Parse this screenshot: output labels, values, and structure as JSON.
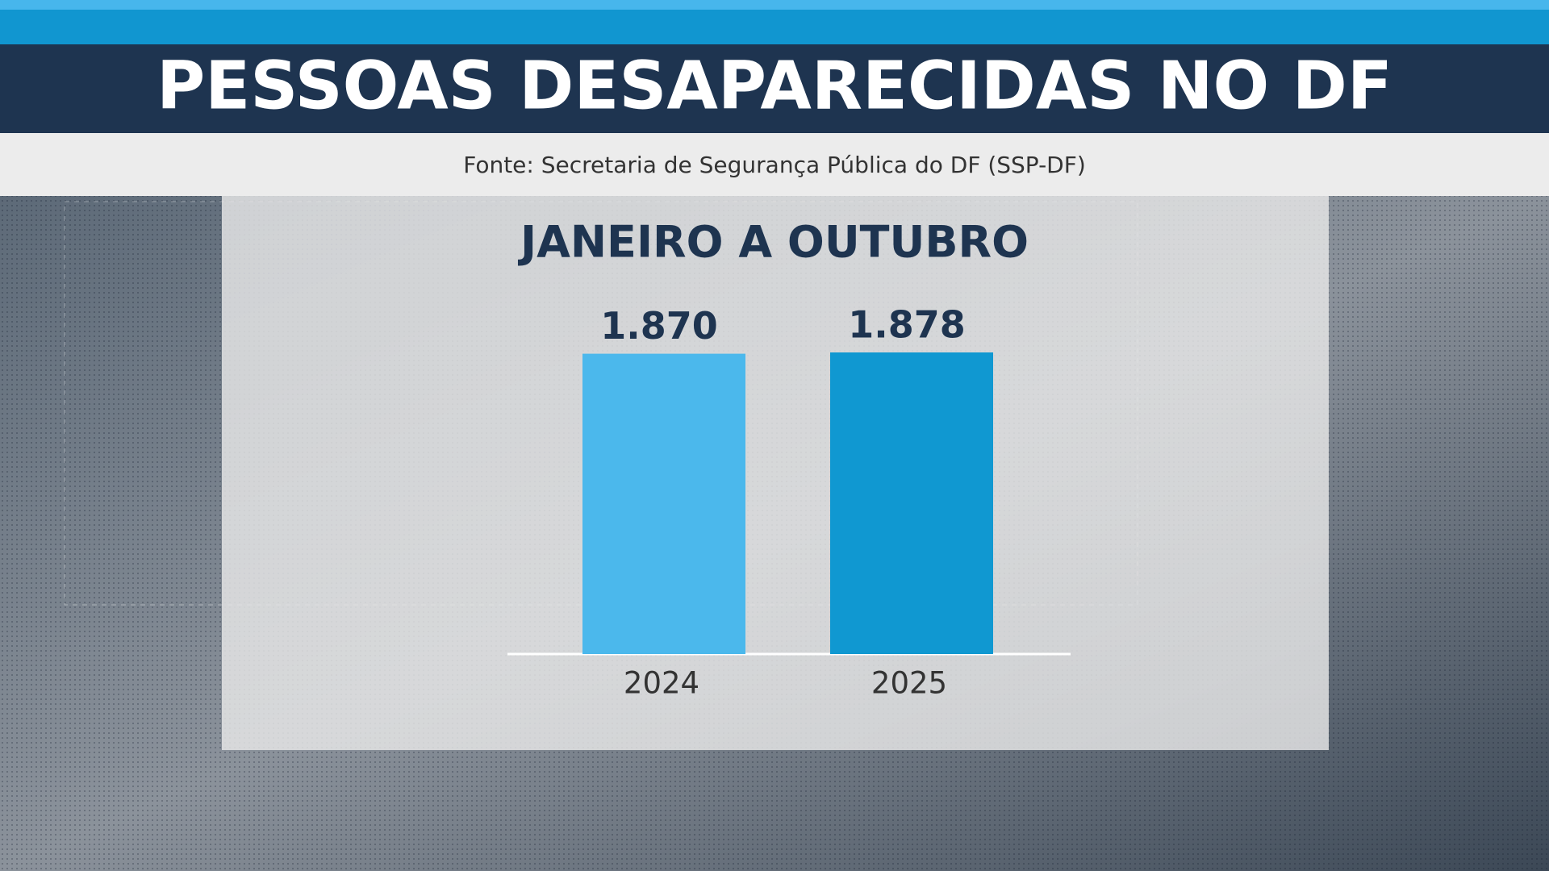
{
  "chart_data": {
    "type": "bar",
    "title": "PESSOAS DESAPARECIDAS NO DF",
    "subtitle": "Fonte: Secretaria de Segurança Pública do DF (SSP-DF)",
    "chart_title": "JANEIRO A OUTUBRO",
    "categories": [
      "2024",
      "2025"
    ],
    "values": [
      1870,
      1878
    ],
    "value_labels": [
      "1.870",
      "1.878"
    ],
    "colors": [
      "#4bb8ec",
      "#1098d1"
    ]
  }
}
